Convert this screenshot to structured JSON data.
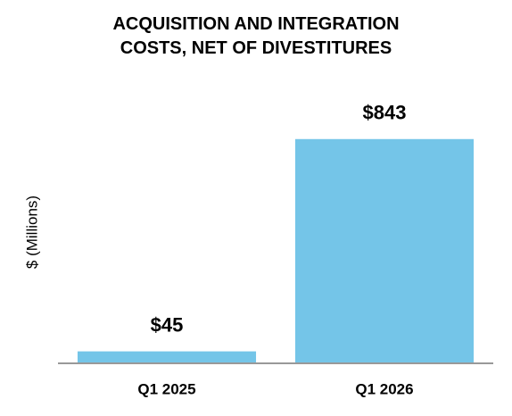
{
  "chart_data": {
    "type": "bar",
    "title": "ACQUISITION AND INTEGRATION COSTS, NET OF DIVESTITURES",
    "y_label": "$ (Millions)",
    "categories": [
      "Q1 2025",
      "Q1 2026"
    ],
    "values": [
      45,
      843
    ],
    "value_labels": [
      "$45",
      "$843"
    ],
    "color": "#74c5e8",
    "ylim": [
      0,
      1000
    ]
  }
}
